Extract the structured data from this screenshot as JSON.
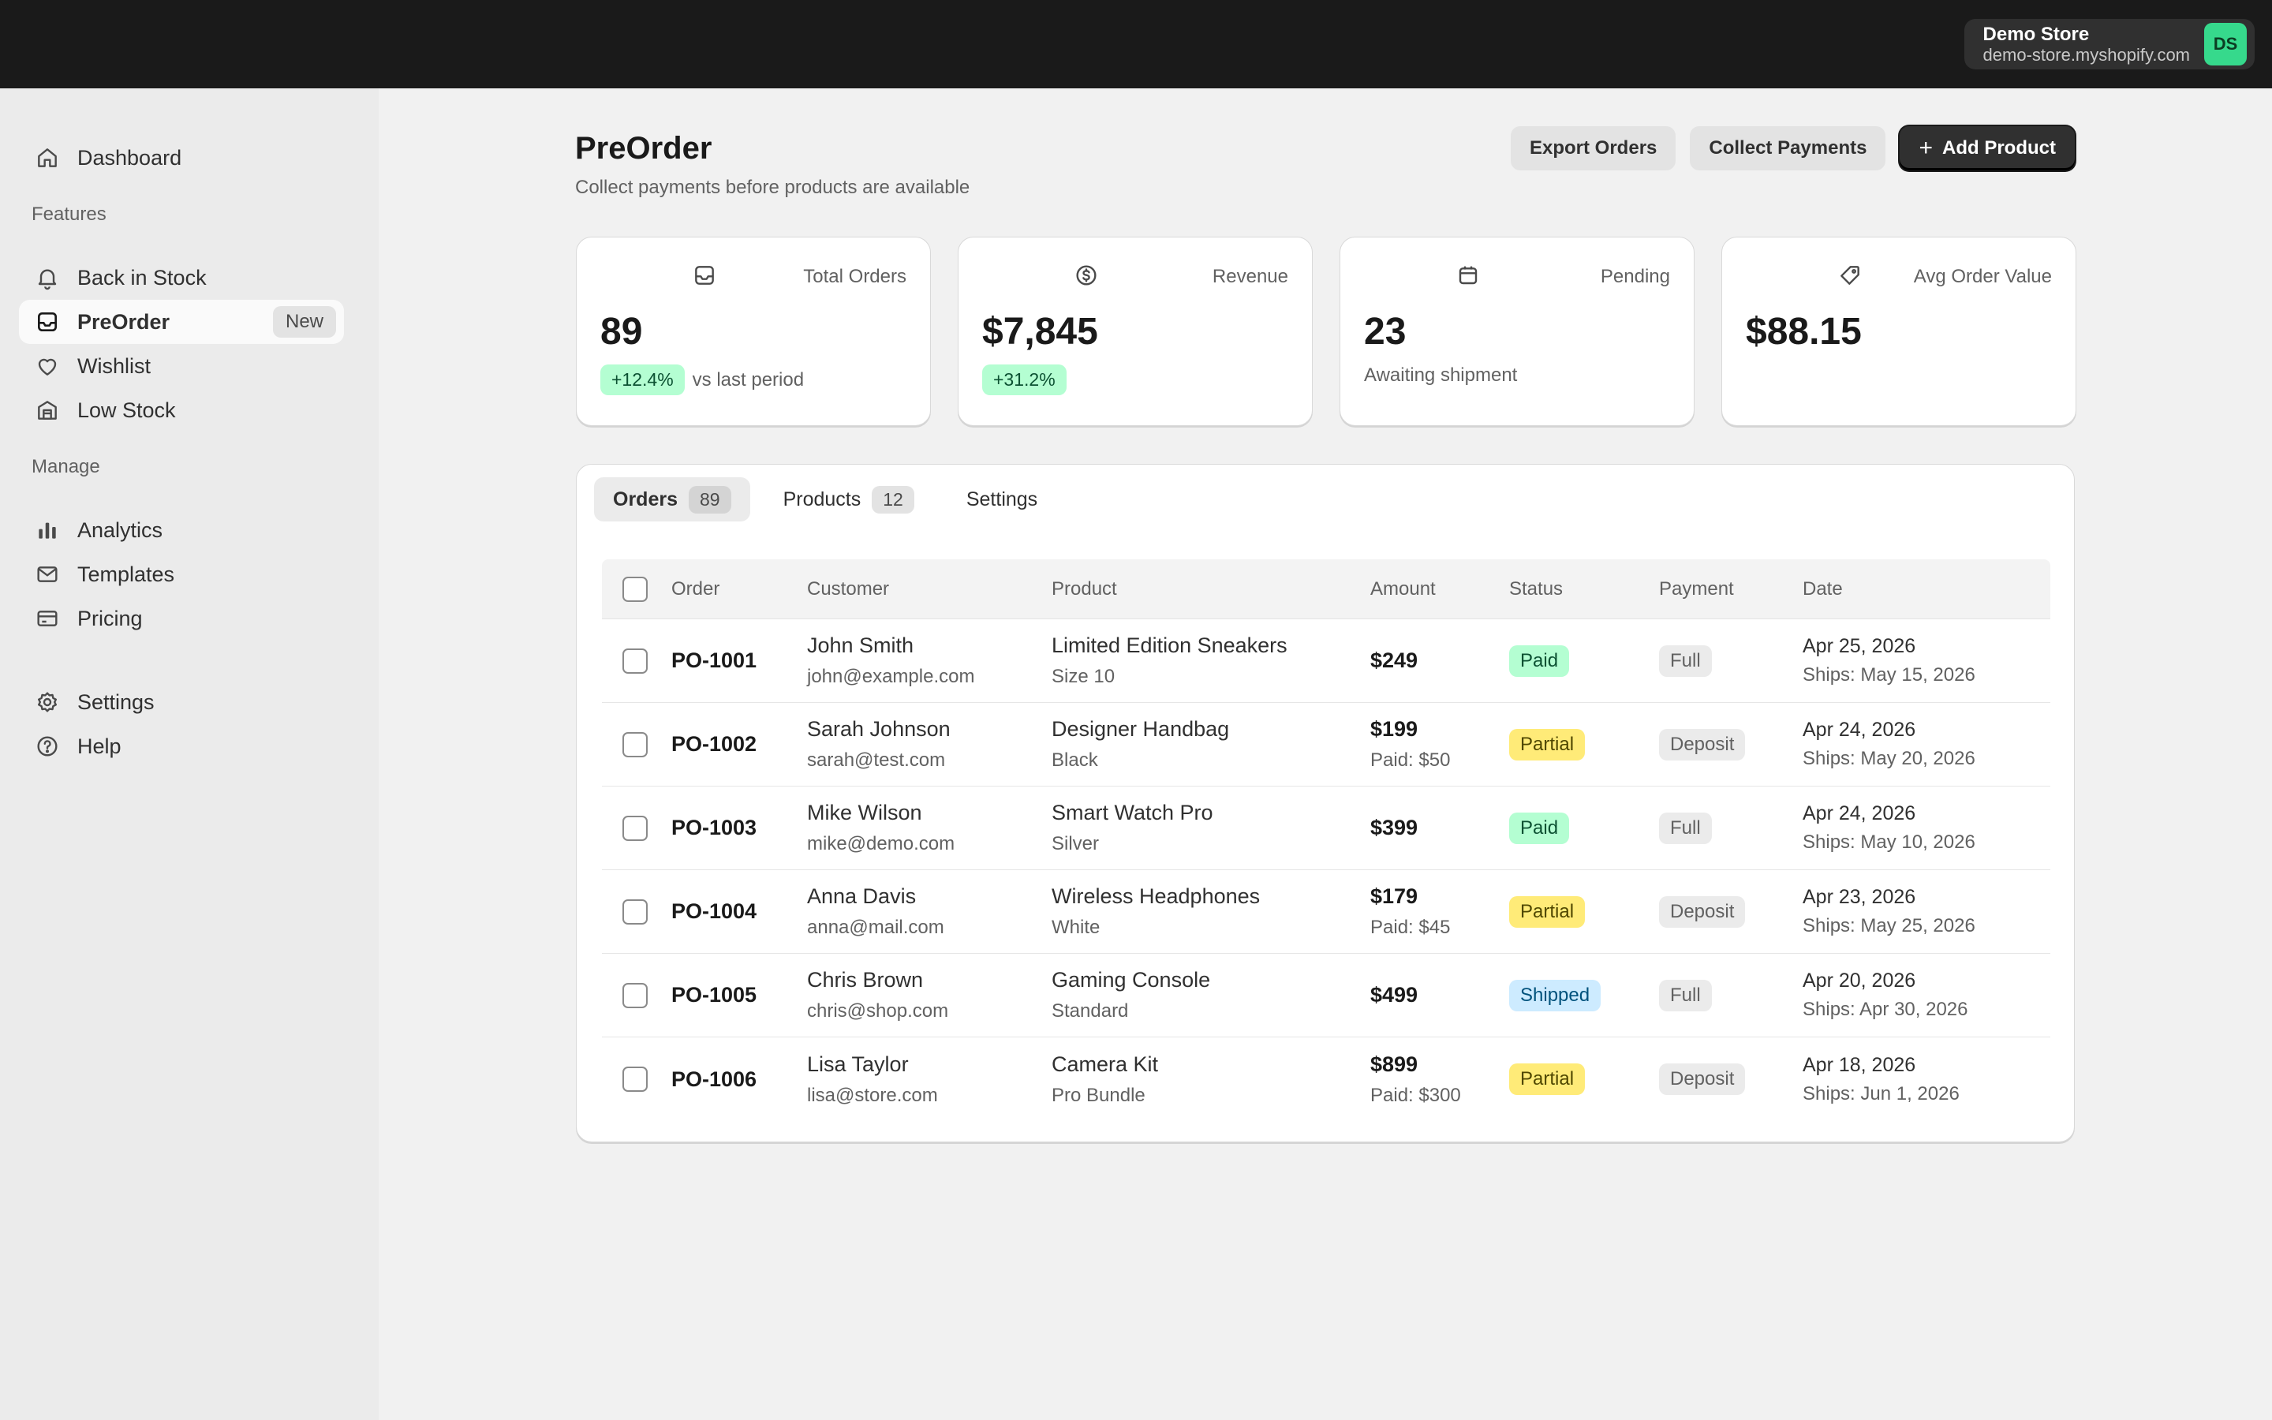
{
  "store": {
    "name": "Demo Store",
    "domain": "demo-store.myshopify.com",
    "initials": "DS",
    "avatar_color": "#36d98c"
  },
  "sidebar": {
    "dashboard": "Dashboard",
    "features_heading": "Features",
    "features": [
      {
        "label": "Back in Stock",
        "icon": "bell-icon"
      },
      {
        "label": "PreOrder",
        "icon": "inbox-icon",
        "badge": "New",
        "active": true
      },
      {
        "label": "Wishlist",
        "icon": "heart-icon"
      },
      {
        "label": "Low Stock",
        "icon": "store-icon"
      }
    ],
    "manage_heading": "Manage",
    "manage": [
      {
        "label": "Analytics",
        "icon": "bar-chart-icon"
      },
      {
        "label": "Templates",
        "icon": "email-icon"
      },
      {
        "label": "Pricing",
        "icon": "credit-card-icon"
      }
    ],
    "settings": "Settings",
    "help": "Help"
  },
  "page": {
    "title": "PreOrder",
    "subtitle": "Collect payments before products are available",
    "actions": {
      "export": "Export Orders",
      "collect": "Collect Payments",
      "add": "Add Product"
    }
  },
  "stats": [
    {
      "label": "Total Orders",
      "value": "89",
      "delta": "+12.4%",
      "note": "vs last period",
      "icon": "inbox-icon"
    },
    {
      "label": "Revenue",
      "value": "$7,845",
      "delta": "+31.2%",
      "note": "",
      "icon": "dollar-circle-icon"
    },
    {
      "label": "Pending",
      "value": "23",
      "delta": "",
      "note": "Awaiting shipment",
      "icon": "calendar-icon"
    },
    {
      "label": "Avg Order Value",
      "value": "$88.15",
      "delta": "",
      "note": "",
      "icon": "tag-icon"
    }
  ],
  "tabs": [
    {
      "label": "Orders",
      "count": "89",
      "active": true
    },
    {
      "label": "Products",
      "count": "12"
    },
    {
      "label": "Settings",
      "count": ""
    }
  ],
  "table": {
    "headers": {
      "order": "Order",
      "customer": "Customer",
      "product": "Product",
      "amount": "Amount",
      "status": "Status",
      "payment": "Payment",
      "date": "Date"
    },
    "rows": [
      {
        "order": "PO-1001",
        "customer": "John Smith",
        "email": "john@example.com",
        "product": "Limited Edition Sneakers",
        "variant": "Size 10",
        "amount": "$249",
        "paid": "",
        "status": "Paid",
        "payment": "Full",
        "date": "Apr 25, 2026",
        "ships": "Ships: May 15, 2026"
      },
      {
        "order": "PO-1002",
        "customer": "Sarah Johnson",
        "email": "sarah@test.com",
        "product": "Designer Handbag",
        "variant": "Black",
        "amount": "$199",
        "paid": "Paid: $50",
        "status": "Partial",
        "payment": "Deposit",
        "date": "Apr 24, 2026",
        "ships": "Ships: May 20, 2026"
      },
      {
        "order": "PO-1003",
        "customer": "Mike Wilson",
        "email": "mike@demo.com",
        "product": "Smart Watch Pro",
        "variant": "Silver",
        "amount": "$399",
        "paid": "",
        "status": "Paid",
        "payment": "Full",
        "date": "Apr 24, 2026",
        "ships": "Ships: May 10, 2026"
      },
      {
        "order": "PO-1004",
        "customer": "Anna Davis",
        "email": "anna@mail.com",
        "product": "Wireless Headphones",
        "variant": "White",
        "amount": "$179",
        "paid": "Paid: $45",
        "status": "Partial",
        "payment": "Deposit",
        "date": "Apr 23, 2026",
        "ships": "Ships: May 25, 2026"
      },
      {
        "order": "PO-1005",
        "customer": "Chris Brown",
        "email": "chris@shop.com",
        "product": "Gaming Console",
        "variant": "Standard",
        "amount": "$499",
        "paid": "",
        "status": "Shipped",
        "payment": "Full",
        "date": "Apr 20, 2026",
        "ships": "Ships: Apr 30, 2026"
      },
      {
        "order": "PO-1006",
        "customer": "Lisa Taylor",
        "email": "lisa@store.com",
        "product": "Camera Kit",
        "variant": "Pro Bundle",
        "amount": "$899",
        "paid": "Paid: $300",
        "status": "Partial",
        "payment": "Deposit",
        "date": "Apr 18, 2026",
        "ships": "Ships: Jun 1, 2026"
      }
    ]
  }
}
